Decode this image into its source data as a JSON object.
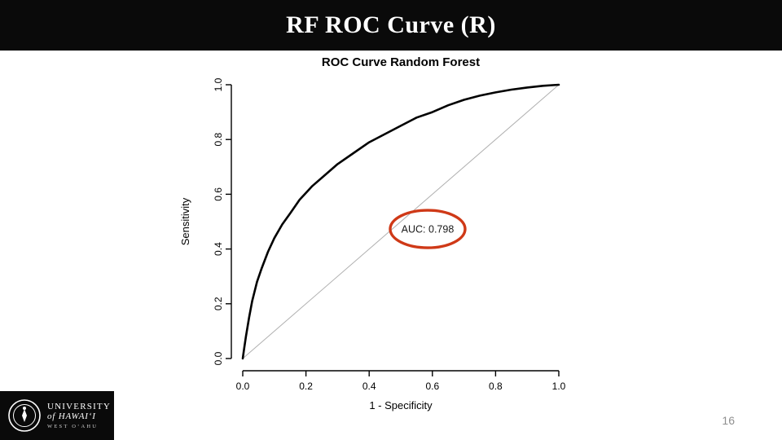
{
  "slide": {
    "title": "RF ROC Curve (R)",
    "page_number": "16"
  },
  "logo": {
    "line1": "UNIVERSITY",
    "line2": "of HAWAIʻI",
    "line3": "WEST OʻAHU"
  },
  "chart_data": {
    "type": "line",
    "title": "ROC Curve Random Forest",
    "xlabel": "1 - Specificity",
    "ylabel": "Sensitivity",
    "xlim": [
      0,
      1
    ],
    "ylim": [
      0,
      1
    ],
    "x_ticks": [
      "0.0",
      "0.2",
      "0.4",
      "0.6",
      "0.8",
      "1.0"
    ],
    "y_ticks": [
      "0.0",
      "0.2",
      "0.4",
      "0.6",
      "0.8",
      "1.0"
    ],
    "grid": false,
    "legend": "none",
    "series": [
      {
        "name": "ROC curve (Random Forest)",
        "color": "#000000",
        "width": 2.6,
        "x": [
          0,
          0.005,
          0.01,
          0.02,
          0.03,
          0.045,
          0.06,
          0.08,
          0.1,
          0.125,
          0.15,
          0.18,
          0.22,
          0.26,
          0.3,
          0.35,
          0.4,
          0.45,
          0.5,
          0.55,
          0.6,
          0.65,
          0.7,
          0.75,
          0.8,
          0.85,
          0.9,
          0.95,
          1.0
        ],
        "y": [
          0,
          0.04,
          0.08,
          0.15,
          0.21,
          0.28,
          0.33,
          0.39,
          0.44,
          0.49,
          0.53,
          0.58,
          0.63,
          0.67,
          0.71,
          0.75,
          0.79,
          0.82,
          0.85,
          0.88,
          0.9,
          0.925,
          0.945,
          0.96,
          0.972,
          0.982,
          0.99,
          0.996,
          1.0
        ]
      },
      {
        "name": "chance diagonal",
        "color": "#b0b0b0",
        "width": 1,
        "x": [
          0,
          1
        ],
        "y": [
          0,
          1
        ]
      }
    ],
    "annotation": {
      "text": "AUC: 0.798",
      "x": 0.585,
      "y": 0.473,
      "circle_color": "#cf3917"
    }
  }
}
